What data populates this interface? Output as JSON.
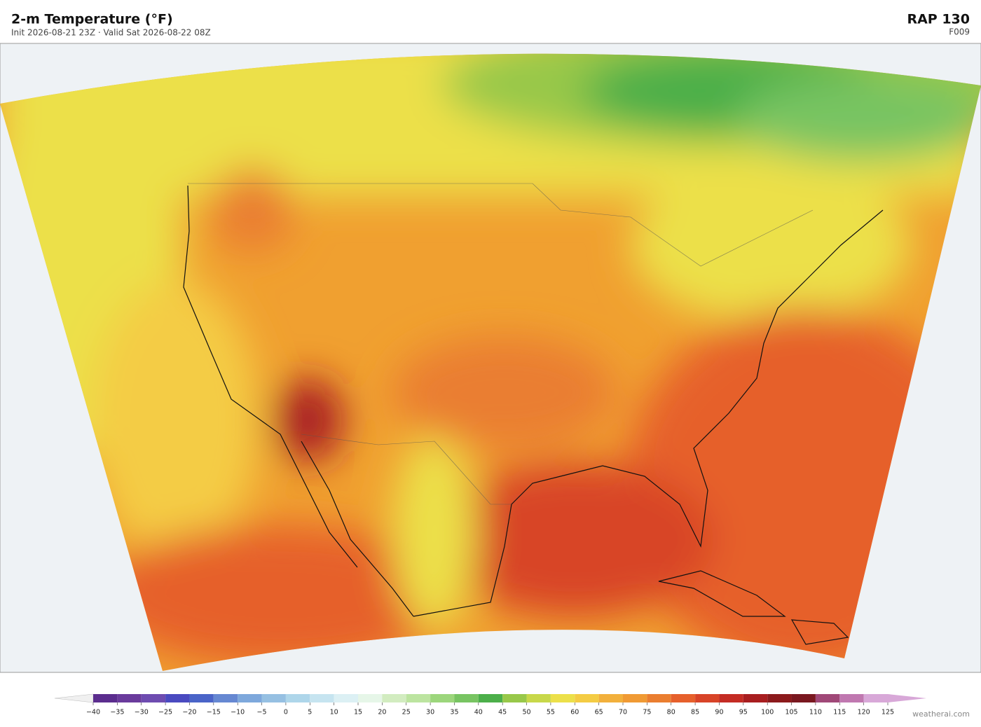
{
  "header": {
    "title": "2-m Temperature  (°F)",
    "subtitle": "Init 2026-08-21 23Z  ·  Valid Sat 2026-08-22 08Z",
    "model": "RAP  130",
    "forecast_hour": "F009"
  },
  "colorbar": {
    "ticks": [
      {
        "value": -40,
        "label": "−40"
      },
      {
        "value": -35,
        "label": "−35"
      },
      {
        "value": -30,
        "label": "−30"
      },
      {
        "value": -25,
        "label": "−25"
      },
      {
        "value": -20,
        "label": "−20"
      },
      {
        "value": -15,
        "label": "−15"
      },
      {
        "value": -10,
        "label": "−10"
      },
      {
        "value": -5,
        "label": "−5"
      },
      0,
      5,
      10,
      15,
      20,
      25,
      30,
      35,
      40,
      45,
      50,
      55,
      60,
      65,
      70,
      75,
      80,
      85,
      90,
      95,
      100,
      105,
      110,
      115,
      120,
      125
    ],
    "colors": [
      "#5b2d8e",
      "#6a3b9c",
      "#6e4cb0",
      "#4a4ac0",
      "#4a64c8",
      "#6688d2",
      "#7ea8dc",
      "#96c0e2",
      "#aed6ea",
      "#c6e4f0",
      "#dcf0f4",
      "#e6f6e8",
      "#d2ecc0",
      "#bce4a0",
      "#9cd67c",
      "#78c462",
      "#4caf4a",
      "#98c84a",
      "#c8d84a",
      "#ece04a",
      "#f4cc44",
      "#f2b03c",
      "#f09a34",
      "#ea7e30",
      "#e6602c",
      "#d84428",
      "#c42c24",
      "#a81e20",
      "#8c1a1c",
      "#7a1820",
      "#a04878",
      "#c078b0",
      "#d8a8d8"
    ]
  },
  "credit": "weatherai.com"
}
